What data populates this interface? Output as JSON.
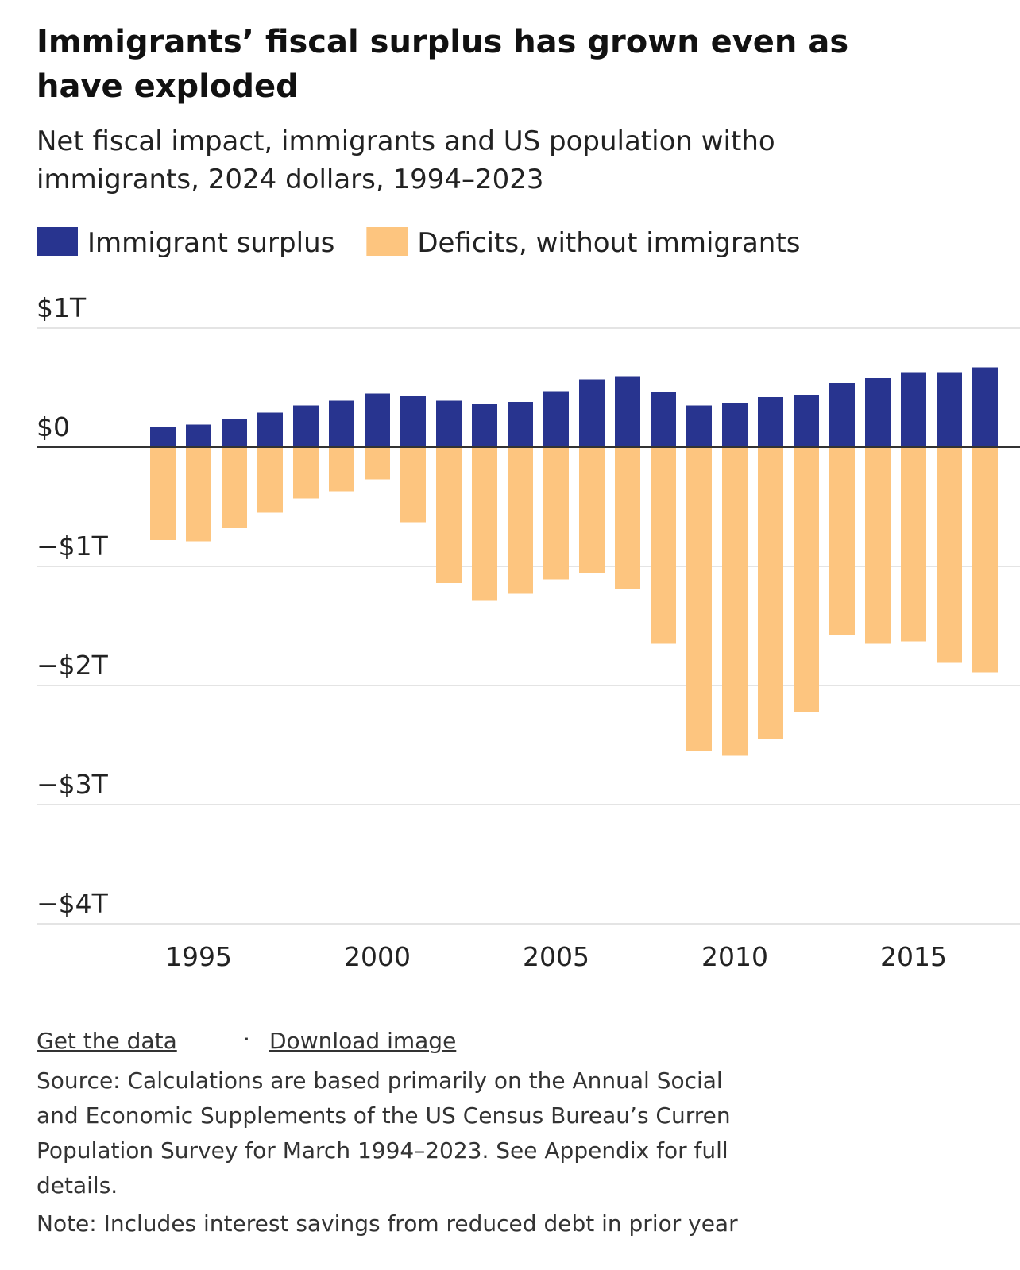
{
  "chart_data": {
    "type": "bar",
    "title": [
      "Immigrants’ fiscal surplus has grown even as",
      "have exploded"
    ],
    "subtitle": [
      "Net fiscal impact, immigrants and US population witho",
      "immigrants, 2024 dollars, 1994–2023"
    ],
    "categories": [
      null,
      "1995",
      null,
      null,
      null,
      null,
      "2000",
      null,
      null,
      null,
      null,
      "2005",
      null,
      null,
      null,
      null,
      "2010",
      null,
      null,
      null,
      null,
      "2015",
      null,
      null
    ],
    "series": [
      {
        "name": "Immigrant surplus",
        "color": "#28348f",
        "values": [
          0.17,
          0.19,
          0.24,
          0.29,
          0.35,
          0.39,
          0.45,
          0.43,
          0.39,
          0.36,
          0.38,
          0.47,
          0.57,
          0.59,
          0.46,
          0.35,
          0.37,
          0.42,
          0.44,
          0.54,
          0.58,
          0.63,
          0.63,
          0.67
        ]
      },
      {
        "name": "Deficits, without immigrants",
        "color": "#fdc57f",
        "values": [
          -0.78,
          -0.79,
          -0.68,
          -0.55,
          -0.43,
          -0.37,
          -0.27,
          -0.63,
          -1.14,
          -1.29,
          -1.23,
          -1.11,
          -1.06,
          -1.19,
          -1.65,
          -2.55,
          -2.59,
          -2.45,
          -2.22,
          -1.58,
          -1.65,
          -1.63,
          -1.81,
          -1.89
        ]
      }
    ],
    "ylim": [
      -4,
      1
    ],
    "yticks": [
      {
        "value": 1,
        "label": "$1T"
      },
      {
        "value": 0,
        "label": "$0"
      },
      {
        "value": -1,
        "label": "−$1T"
      },
      {
        "value": -2,
        "label": "−$2T"
      },
      {
        "value": -3,
        "label": "−$3T"
      },
      {
        "value": -4,
        "label": "−$4T"
      }
    ],
    "grid": true
  },
  "footer": {
    "links": [
      "Get the data",
      "Download image"
    ],
    "separator": "·",
    "source": [
      "Source: Calculations are based primarily on the Annual Social",
      "and Economic Supplements of the US Census Bureau’s Curren",
      "Population Survey for March 1994–2023. See Appendix for full",
      "details."
    ],
    "note": "Note: Includes interest savings from reduced debt in prior year"
  }
}
